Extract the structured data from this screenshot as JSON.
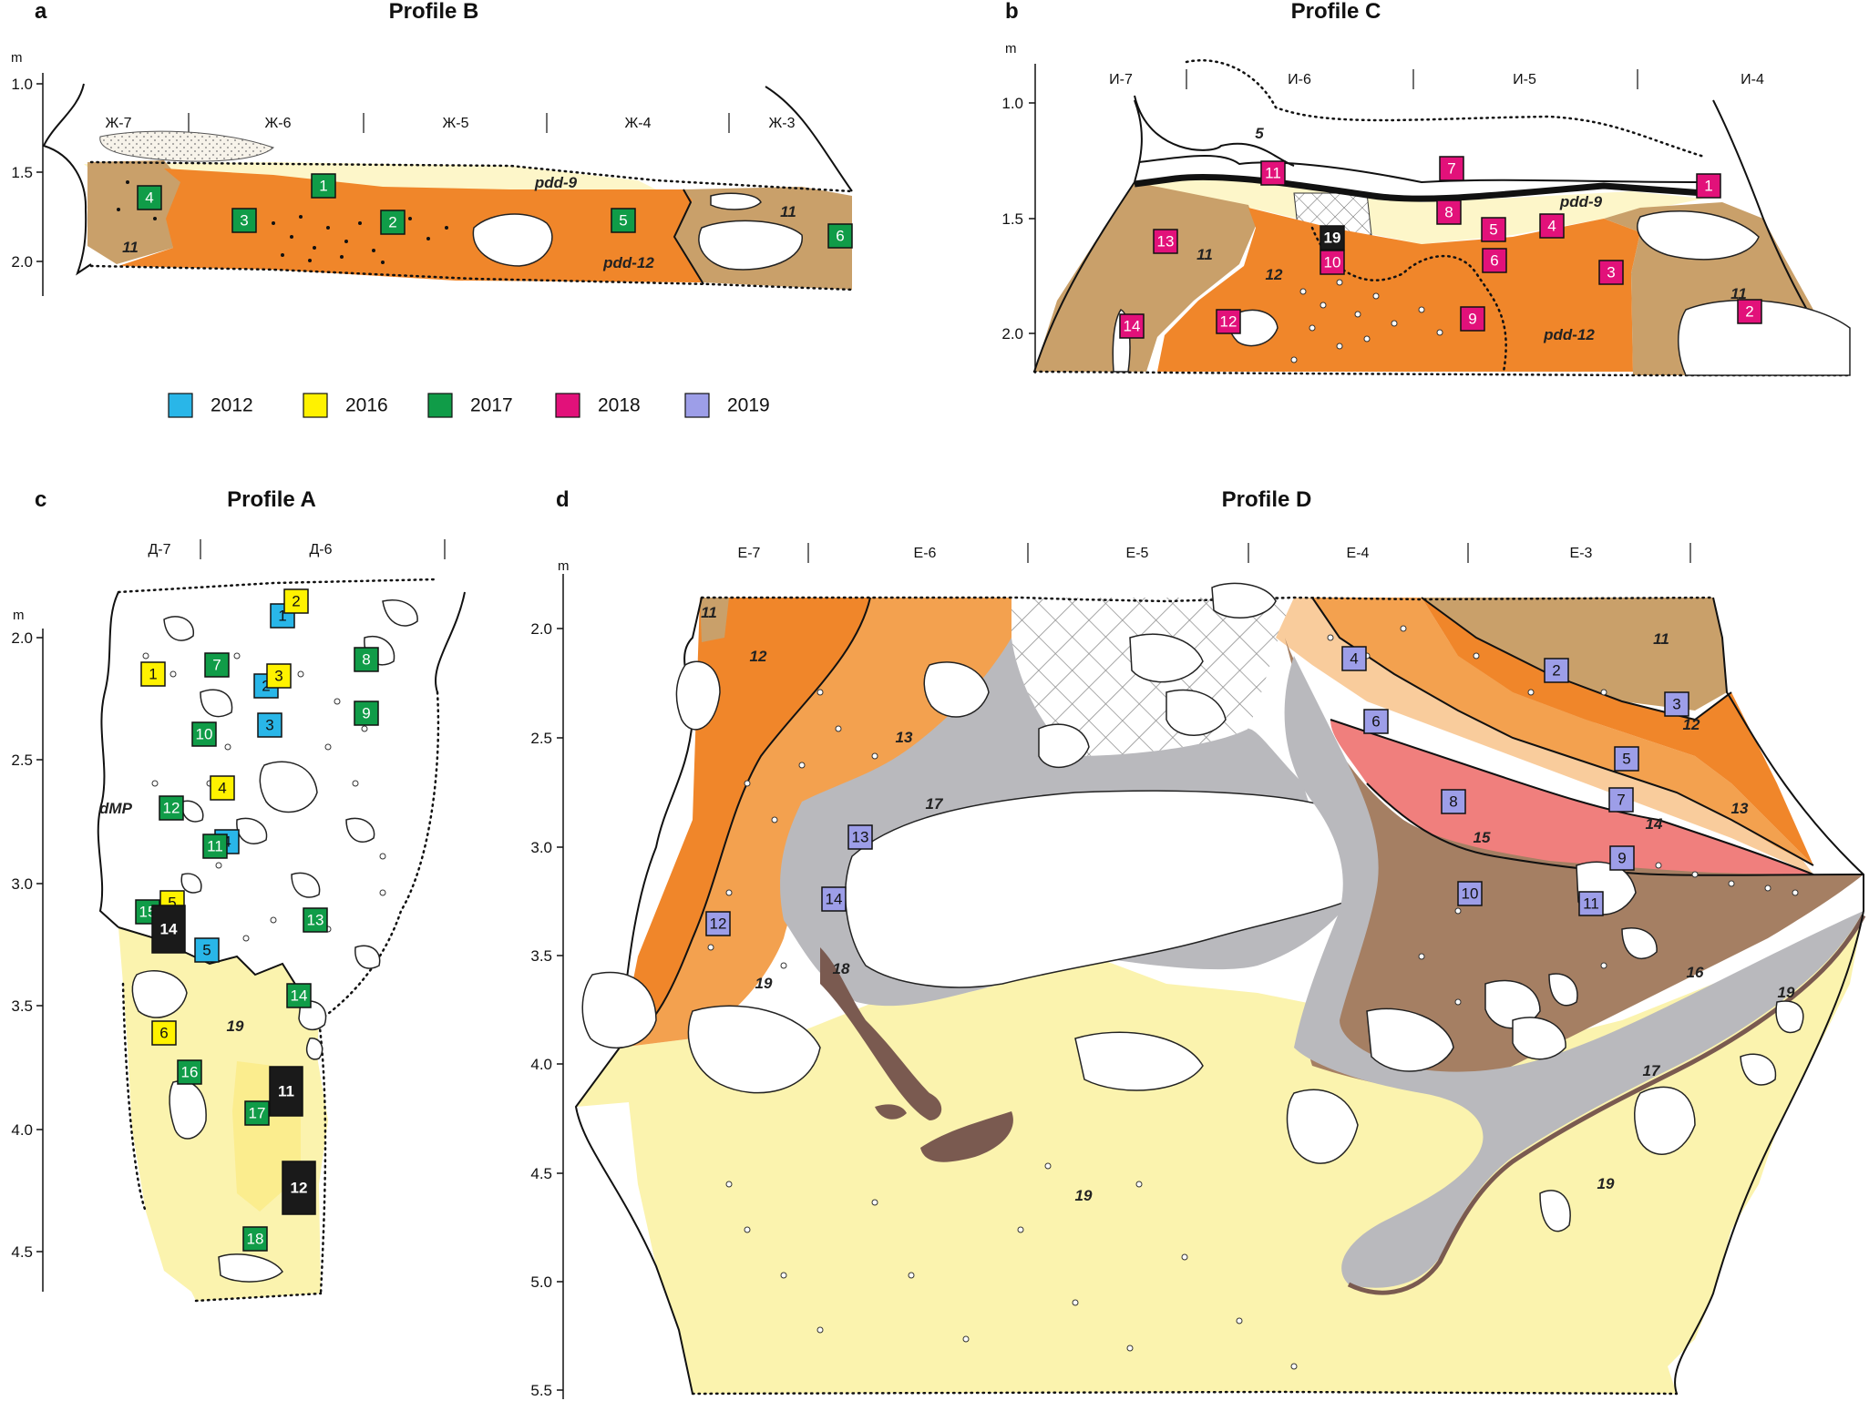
{
  "colors": {
    "layer_11": "#c9a06a",
    "layer_12": "#f0862a",
    "layer_13": "#f3a14f",
    "layer_14": "#f9cc9c",
    "layer_15": "#f07f7d",
    "layer_16": "#a57f63",
    "layer_17": "#b9b9bd",
    "layer_18": "#7a5a50",
    "layer_19": "#fbf3ae",
    "layer_pdd9": "#fdf6c9",
    "dmp": "#ffffff"
  },
  "legend": [
    {
      "year": "2012",
      "color": "#29b6e8"
    },
    {
      "year": "2016",
      "color": "#fff200"
    },
    {
      "year": "2017",
      "color": "#109c48"
    },
    {
      "year": "2018",
      "color": "#e2117a"
    },
    {
      "year": "2019",
      "color": "#9d9ee8"
    }
  ],
  "panels": [
    {
      "id": "a",
      "letter": "a",
      "title": "Profile B",
      "unit": "m",
      "axis_ticks": [
        "1.0",
        "1.5",
        "2.0"
      ],
      "squares": [
        "Ж-7",
        "Ж-6",
        "Ж-5",
        "Ж-4",
        "Ж-3"
      ],
      "layer_labels": [
        "11",
        "11",
        "pdd-9",
        "pdd-12"
      ],
      "samples": [
        {
          "n": "1",
          "year": "2017"
        },
        {
          "n": "2",
          "year": "2017"
        },
        {
          "n": "3",
          "year": "2017"
        },
        {
          "n": "4",
          "year": "2017"
        },
        {
          "n": "5",
          "year": "2017"
        },
        {
          "n": "6",
          "year": "2017"
        }
      ]
    },
    {
      "id": "b",
      "letter": "b",
      "title": "Profile C",
      "unit": "m",
      "axis_ticks": [
        "1.0",
        "1.5",
        "2.0"
      ],
      "squares": [
        "И-7",
        "И-6",
        "И-5",
        "И-4"
      ],
      "layer_labels": [
        "5",
        "11",
        "12",
        "11",
        "pdd-9",
        "pdd-12"
      ],
      "samples": [
        {
          "n": "1",
          "year": "2018"
        },
        {
          "n": "2",
          "year": "2018"
        },
        {
          "n": "3",
          "year": "2018"
        },
        {
          "n": "4",
          "year": "2018"
        },
        {
          "n": "5",
          "year": "2018"
        },
        {
          "n": "6",
          "year": "2018"
        },
        {
          "n": "7",
          "year": "2018"
        },
        {
          "n": "8",
          "year": "2018"
        },
        {
          "n": "9",
          "year": "2018"
        },
        {
          "n": "10",
          "year": "2018"
        },
        {
          "n": "11",
          "year": "2018"
        },
        {
          "n": "12",
          "year": "2018"
        },
        {
          "n": "13",
          "year": "2018"
        },
        {
          "n": "14",
          "year": "2018"
        },
        {
          "n": "19",
          "year": "black"
        }
      ]
    },
    {
      "id": "c",
      "letter": "c",
      "title": "Profile A",
      "unit": "m",
      "axis_ticks": [
        "2.0",
        "2.5",
        "3.0",
        "3.5",
        "4.0",
        "4.5"
      ],
      "squares": [
        "Д-7",
        "Д-6"
      ],
      "layer_labels": [
        "dMP",
        "19"
      ],
      "samples": [
        {
          "n": "1",
          "year": "2012"
        },
        {
          "n": "2",
          "year": "2016"
        },
        {
          "n": "1",
          "year": "2016"
        },
        {
          "n": "2",
          "year": "2012"
        },
        {
          "n": "3",
          "year": "2016"
        },
        {
          "n": "3",
          "year": "2012"
        },
        {
          "n": "4",
          "year": "2016"
        },
        {
          "n": "4",
          "year": "2012"
        },
        {
          "n": "5",
          "year": "2016"
        },
        {
          "n": "5",
          "year": "2012"
        },
        {
          "n": "6",
          "year": "2016"
        },
        {
          "n": "7",
          "year": "2017"
        },
        {
          "n": "8",
          "year": "2017"
        },
        {
          "n": "9",
          "year": "2017"
        },
        {
          "n": "10",
          "year": "2017"
        },
        {
          "n": "11",
          "year": "2017"
        },
        {
          "n": "12",
          "year": "2017"
        },
        {
          "n": "13",
          "year": "2017"
        },
        {
          "n": "14",
          "year": "2017"
        },
        {
          "n": "15",
          "year": "2017"
        },
        {
          "n": "16",
          "year": "2017"
        },
        {
          "n": "17",
          "year": "2017"
        },
        {
          "n": "18",
          "year": "2017"
        },
        {
          "n": "14",
          "year": "black"
        },
        {
          "n": "11",
          "year": "black"
        },
        {
          "n": "12",
          "year": "black"
        }
      ]
    },
    {
      "id": "d",
      "letter": "d",
      "title": "Profile D",
      "unit": "m",
      "axis_ticks": [
        "2.0",
        "2.5",
        "3.0",
        "3.5",
        "4.0",
        "4.5",
        "5.0",
        "5.5"
      ],
      "squares": [
        "Е-7",
        "Е-6",
        "Е-5",
        "Е-4",
        "Е-3"
      ],
      "layer_labels": [
        "11",
        "12",
        "13",
        "17",
        "18",
        "19",
        "11",
        "12",
        "13",
        "14",
        "15",
        "16",
        "17",
        "19",
        "19",
        "19"
      ],
      "samples": [
        {
          "n": "2",
          "year": "2019"
        },
        {
          "n": "3",
          "year": "2019"
        },
        {
          "n": "4",
          "year": "2019"
        },
        {
          "n": "5",
          "year": "2019"
        },
        {
          "n": "6",
          "year": "2019"
        },
        {
          "n": "7",
          "year": "2019"
        },
        {
          "n": "8",
          "year": "2019"
        },
        {
          "n": "9",
          "year": "2019"
        },
        {
          "n": "10",
          "year": "2019"
        },
        {
          "n": "11",
          "year": "2019"
        },
        {
          "n": "12",
          "year": "2019"
        },
        {
          "n": "13",
          "year": "2019"
        },
        {
          "n": "14",
          "year": "2019"
        }
      ]
    }
  ]
}
